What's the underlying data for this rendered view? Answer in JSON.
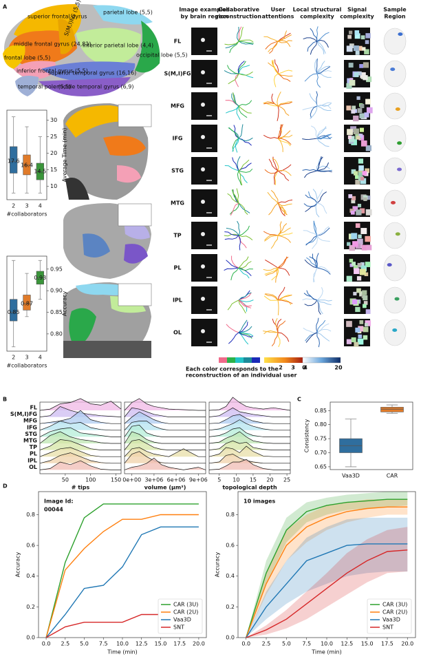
{
  "figure": {
    "panel_labels": [
      "A",
      "B",
      "C",
      "D"
    ],
    "brain_regions": [
      "superior  frontal gyrus",
      "middle frontal gyrus (24,81)",
      "S(M,I)FG (5,5)",
      "frontal lobe (5,5)",
      "inferior frontal gyrus (5,5)",
      "temporal pole (5,5)",
      "parietal lobe (5,5)",
      "inferior parietal lobe (4,4)",
      "occipital lobe (5,5)",
      "superior temporal gyrus (16,16)",
      "middle temporal gyrus (6,9)"
    ],
    "column_headers": [
      [
        "Image examples",
        "by brain region"
      ],
      [
        "Collaborative",
        "reconstruction"
      ],
      [
        "User",
        "attentions"
      ],
      [
        "Local structural",
        "complexity"
      ],
      [
        "Signal",
        "complexity"
      ],
      [
        "Sample",
        "Region"
      ]
    ],
    "row_labels": [
      "FL",
      "S(M,I)FG",
      "MFG",
      "IFG",
      "STG",
      "MTG",
      "TP",
      "PL",
      "IPL",
      "OL"
    ],
    "legend_text": [
      "Each color corresponds to the",
      "reconstruction of an individual user"
    ],
    "attention_scale": [
      2,
      3,
      4
    ],
    "complexity_scale": [
      0,
      20
    ]
  },
  "chart_data": [
    {
      "type": "box",
      "ylabel": "Average Time (min)",
      "xlabel": "#collaborators",
      "yaxis_side": "right",
      "show_median_labels": true,
      "categories": [
        "2",
        "3",
        "4"
      ],
      "colors": [
        "#2f6e9e",
        "#e07b2a",
        "#3a953a"
      ],
      "whisker_low": [
        8,
        8,
        8
      ],
      "q1": [
        14,
        13.5,
        12
      ],
      "median": [
        17.6,
        16.4,
        14.5
      ],
      "q3": [
        22,
        19.5,
        17
      ],
      "whisker_high": [
        31,
        28,
        25
      ],
      "ylim": [
        6,
        33
      ],
      "yticks": [
        10,
        15,
        20,
        25,
        30
      ]
    },
    {
      "type": "box",
      "ylabel": "Accuracy",
      "xlabel": "#collaborators",
      "yaxis_side": "right",
      "show_median_labels": true,
      "categories": [
        "2",
        "3",
        "4"
      ],
      "colors": [
        "#2f6e9e",
        "#e07b2a",
        "#3a953a"
      ],
      "whisker_low": [
        0.77,
        0.84,
        0.88
      ],
      "q1": [
        0.83,
        0.855,
        0.915
      ],
      "median": [
        0.85,
        0.87,
        0.93
      ],
      "q3": [
        0.88,
        0.89,
        0.945
      ],
      "whisker_high": [
        0.97,
        0.94,
        0.97
      ],
      "ylim": [
        0.76,
        0.98
      ],
      "yticks": [
        {
          "value": 0.8,
          "label": "0.80"
        },
        0.85,
        {
          "value": 0.9,
          "label": "0.90"
        },
        0.95
      ]
    },
    {
      "type": "ridgeline",
      "categories": [
        "FL",
        "S(M,I)FG",
        "MFG",
        "IFG",
        "STG",
        "MTG",
        "TP",
        "PL",
        "IPL",
        "OL"
      ],
      "colors": [
        "#f0b8e6",
        "#cdbcf2",
        "#aecbf0",
        "#b6e4f0",
        "#b6eed8",
        "#bde6b2",
        "#d6e6a6",
        "#e8dfa8",
        "#f0d2aa",
        "#f0bcb4"
      ],
      "panels": [
        {
          "xlabel": "# tips",
          "xlim": [
            0,
            160
          ],
          "xticks": [
            50,
            100,
            150
          ],
          "x": [
            0,
            20,
            40,
            60,
            80,
            100,
            120,
            140,
            160
          ],
          "values": [
            [
              0,
              0.1,
              0.5,
              0.6,
              0.9,
              0.5,
              0.4,
              0.7,
              0.1
            ],
            [
              0,
              0.1,
              0.8,
              0.5,
              0.3,
              0.2,
              0.1,
              0.05,
              0
            ],
            [
              0,
              0.1,
              0.2,
              0.4,
              1,
              0.3,
              0.1,
              0,
              0
            ],
            [
              0,
              0.3,
              0.7,
              0.5,
              0.6,
              0.2,
              0.05,
              0,
              0
            ],
            [
              0,
              0.4,
              0.6,
              0.7,
              0.3,
              0.2,
              0.1,
              0,
              0
            ],
            [
              0,
              0.6,
              0.9,
              0.5,
              0.3,
              0.2,
              0.05,
              0,
              0
            ],
            [
              0,
              0.3,
              0.8,
              0.7,
              0.4,
              0.1,
              0,
              0,
              0
            ],
            [
              0,
              0.3,
              0.6,
              0.7,
              0.4,
              0.1,
              0,
              0,
              0
            ],
            [
              0,
              0.2,
              0.6,
              0.8,
              0.5,
              0.2,
              0.05,
              0,
              0
            ],
            [
              0,
              0.1,
              0.6,
              0.4,
              0.7,
              0.3,
              0.05,
              0,
              0
            ]
          ]
        },
        {
          "xlabel": "volume (μm³)",
          "xlim": [
            -1000000,
            10000000
          ],
          "xticks": [
            {
              "value": 0,
              "label": "0e+00"
            },
            {
              "value": 3000000,
              "label": "3e+06"
            },
            {
              "value": 6000000,
              "label": "6e+06"
            },
            {
              "value": 9000000,
              "label": "9e+06"
            }
          ],
          "x": [
            -1000000,
            0,
            1000000,
            2000000,
            3000000,
            4000000,
            5000000,
            7000000,
            9000000,
            10000000
          ],
          "values": [
            [
              0,
              0.6,
              0.9,
              0.5,
              0.3,
              0.2,
              0.1,
              0.05,
              0,
              0
            ],
            [
              0,
              0.7,
              0.6,
              0.4,
              0.2,
              0.1,
              0,
              0,
              0,
              0
            ],
            [
              0,
              0.5,
              0.9,
              0.6,
              0.3,
              0.1,
              0,
              0,
              0,
              0
            ],
            [
              0,
              0.6,
              0.7,
              0.7,
              0.3,
              0.1,
              0,
              0,
              0,
              0
            ],
            [
              0,
              0.8,
              0.9,
              0.3,
              0.1,
              0,
              0,
              0,
              0,
              0
            ],
            [
              0,
              0.9,
              0.7,
              0.3,
              0.1,
              0,
              0,
              0,
              0,
              0
            ],
            [
              0,
              0.7,
              0.8,
              0.5,
              0.2,
              0.05,
              0,
              0,
              0,
              0
            ],
            [
              0,
              0.6,
              0.7,
              0.4,
              0.2,
              0.1,
              0,
              0.6,
              0,
              0
            ],
            [
              0,
              0.7,
              0.9,
              0.5,
              0.2,
              0.05,
              0,
              0,
              0,
              0
            ],
            [
              0,
              0.2,
              0.3,
              0.5,
              0.9,
              0.4,
              0.2,
              0,
              0.2,
              0
            ]
          ]
        },
        {
          "xlabel": "topological depth",
          "xlim": [
            2,
            26
          ],
          "xticks": [
            5,
            10,
            15,
            20,
            25
          ],
          "x": [
            2,
            5,
            7,
            9,
            11,
            13,
            15,
            18,
            21,
            26
          ],
          "values": [
            [
              0,
              0.05,
              0.3,
              1,
              0.6,
              0.3,
              0.2,
              0.1,
              0.2,
              0
            ],
            [
              0,
              0.1,
              0.4,
              0.7,
              0.4,
              0.3,
              0.2,
              0.1,
              0,
              0
            ],
            [
              0,
              0.05,
              0.3,
              0.6,
              0.7,
              0.4,
              0.2,
              0.05,
              0,
              0
            ],
            [
              0,
              0.1,
              0.3,
              0.5,
              0.8,
              0.5,
              0.3,
              0.1,
              0,
              0
            ],
            [
              0,
              0.1,
              0.3,
              0.6,
              0.7,
              0.3,
              0.1,
              0,
              0,
              0
            ],
            [
              0,
              0.1,
              0.4,
              0.6,
              0.9,
              0.5,
              0.2,
              0.05,
              0,
              0
            ],
            [
              0,
              0.1,
              0.5,
              0.7,
              0.5,
              0.6,
              0.2,
              0.05,
              0,
              0
            ],
            [
              0,
              0.2,
              0.7,
              0.6,
              0.3,
              0.8,
              0.4,
              0.05,
              0,
              0
            ],
            [
              0,
              0.1,
              0.6,
              0.7,
              0.4,
              0.2,
              0.1,
              0,
              0,
              0
            ],
            [
              0,
              0.05,
              0.3,
              0.6,
              0.6,
              0.8,
              0.4,
              0.1,
              0,
              0
            ]
          ]
        }
      ]
    },
    {
      "type": "box",
      "ylabel": "Consistency",
      "yaxis_side": "left",
      "show_median_labels": false,
      "categories": [
        "Vaa3D",
        "CAR"
      ],
      "colors": [
        "#2f6e9e",
        "#e07b2a"
      ],
      "whisker_low": [
        0.65,
        0.84
      ],
      "q1": [
        0.7,
        0.845
      ],
      "median": [
        0.725,
        0.855
      ],
      "q3": [
        0.75,
        0.862
      ],
      "whisker_high": [
        0.82,
        0.87
      ],
      "ylim": [
        0.64,
        0.88
      ],
      "yticks": [
        0.65,
        {
          "value": 0.7,
          "label": "0.70"
        },
        0.75,
        {
          "value": 0.8,
          "label": "0.80"
        },
        0.85
      ]
    },
    {
      "type": "line",
      "xlabel": "Time (min)",
      "ylabel": "Accuracy",
      "annotation": [
        "Image Id:",
        "00044"
      ],
      "legend": "lower right",
      "x": [
        0,
        2.5,
        5,
        7.5,
        10,
        12.5,
        15,
        17.5,
        20
      ],
      "xlim": [
        -1,
        21
      ],
      "xticks": [
        {
          "value": 0,
          "label": "0.0"
        },
        2.5,
        {
          "value": 5,
          "label": "5.0"
        },
        7.5,
        {
          "value": 10,
          "label": "10.0"
        },
        12.5,
        {
          "value": 15,
          "label": "15.0"
        },
        17.5,
        {
          "value": 20,
          "label": "20.0"
        }
      ],
      "ylim": [
        0,
        0.95
      ],
      "yticks": [
        {
          "value": 0,
          "label": "0.0"
        },
        0.2,
        0.4,
        0.6,
        0.8
      ],
      "series": [
        {
          "name": "CAR (3U)",
          "color": "#2ca02c",
          "values": [
            0,
            0.49,
            0.78,
            0.87,
            0.87,
            0.87,
            0.87,
            0.87,
            0.87
          ]
        },
        {
          "name": "CAR (2U)",
          "color": "#ff7f0e",
          "values": [
            0,
            0.44,
            0.58,
            0.69,
            0.77,
            0.77,
            0.8,
            0.8,
            0.8
          ]
        },
        {
          "name": "Vaa3D",
          "color": "#1f77b4",
          "values": [
            0,
            0.15,
            0.32,
            0.34,
            0.46,
            0.67,
            0.72,
            0.72,
            0.72
          ]
        },
        {
          "name": "SNT",
          "color": "#d62728",
          "values": [
            0,
            0.07,
            0.1,
            0.1,
            0.1,
            0.15,
            0.15,
            0.16,
            0.17
          ]
        }
      ]
    },
    {
      "type": "line",
      "xlabel": "Time (min)",
      "ylabel": "Accuracy",
      "annotation": [
        "10 images"
      ],
      "legend": "lower right",
      "x": [
        0,
        2.5,
        5,
        7.5,
        10,
        12.5,
        15,
        17.5,
        20
      ],
      "xlim": [
        -1,
        21
      ],
      "xticks": [
        {
          "value": 0,
          "label": "0.0"
        },
        2.5,
        {
          "value": 5,
          "label": "5.0"
        },
        7.5,
        {
          "value": 10,
          "label": "10.0"
        },
        12.5,
        {
          "value": 15,
          "label": "15.0"
        },
        17.5,
        {
          "value": 20,
          "label": "20.0"
        }
      ],
      "ylim": [
        0,
        0.95
      ],
      "yticks": [
        {
          "value": 0,
          "label": "0.0"
        },
        0.2,
        0.4,
        0.6,
        0.8
      ],
      "series": [
        {
          "name": "CAR (3U)",
          "color": "#2ca02c",
          "values": [
            0,
            0.42,
            0.7,
            0.82,
            0.86,
            0.88,
            0.89,
            0.9,
            0.9
          ],
          "lower": [
            0,
            0.35,
            0.62,
            0.75,
            0.8,
            0.83,
            0.84,
            0.85,
            0.86
          ],
          "upper": [
            0,
            0.5,
            0.78,
            0.88,
            0.91,
            0.93,
            0.94,
            0.95,
            0.95
          ]
        },
        {
          "name": "CAR (2U)",
          "color": "#ff7f0e",
          "values": [
            0,
            0.35,
            0.6,
            0.72,
            0.78,
            0.82,
            0.84,
            0.85,
            0.85
          ],
          "lower": [
            0,
            0.28,
            0.5,
            0.62,
            0.7,
            0.75,
            0.78,
            0.8,
            0.8
          ],
          "upper": [
            0,
            0.42,
            0.7,
            0.8,
            0.86,
            0.88,
            0.9,
            0.9,
            0.9
          ]
        },
        {
          "name": "Vaa3D",
          "color": "#1f77b4",
          "values": [
            0,
            0.2,
            0.35,
            0.5,
            0.55,
            0.6,
            0.61,
            0.61,
            0.61
          ],
          "lower": [
            0,
            0.12,
            0.22,
            0.3,
            0.35,
            0.4,
            0.42,
            0.43,
            0.43
          ],
          "upper": [
            0,
            0.3,
            0.5,
            0.65,
            0.72,
            0.77,
            0.78,
            0.78,
            0.78
          ]
        },
        {
          "name": "SNT",
          "color": "#d62728",
          "values": [
            0,
            0.05,
            0.12,
            0.22,
            0.32,
            0.42,
            0.5,
            0.56,
            0.57
          ],
          "lower": [
            0,
            0.02,
            0.06,
            0.12,
            0.2,
            0.28,
            0.36,
            0.42,
            0.43
          ],
          "upper": [
            0,
            0.08,
            0.18,
            0.3,
            0.42,
            0.55,
            0.64,
            0.7,
            0.72
          ]
        }
      ]
    }
  ]
}
